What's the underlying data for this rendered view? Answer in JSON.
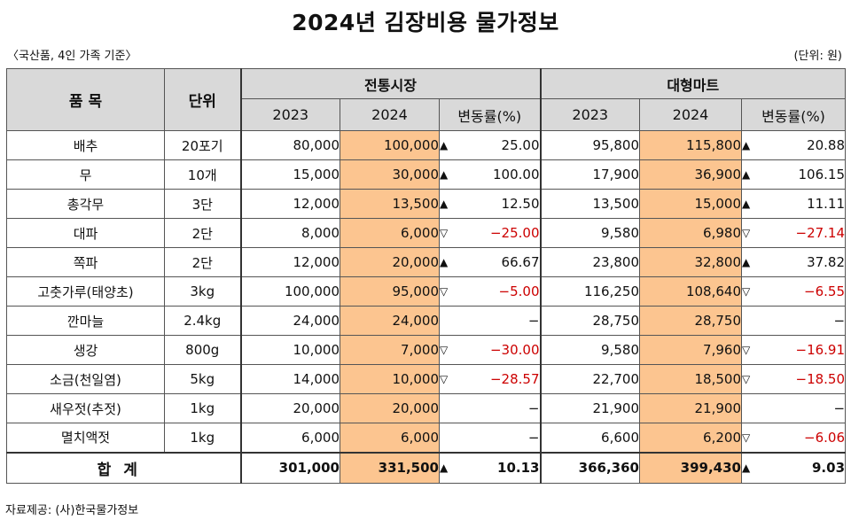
{
  "title": "2024년 김장비용 물가정보",
  "note_left": "〈국산품, 4인 가족 기준〉",
  "note_right": "(단위: 원)",
  "source": "자료제공: (사)한국물가정보",
  "headers": {
    "item": "품  목",
    "unit": "단위",
    "market": "전통시장",
    "mart": "대형마트",
    "y2023": "2023",
    "y2024": "2024",
    "change": "변동률(%)"
  },
  "rows": [
    {
      "name": "배추",
      "unit": "20포기",
      "m2023": "80,000",
      "m2024": "100,000",
      "m_arrow": "▲",
      "m_chg": "25.00",
      "m_neg": false,
      "t2023": "95,800",
      "t2024": "115,800",
      "t_arrow": "▲",
      "t_chg": "20.88",
      "t_neg": false
    },
    {
      "name": "무",
      "unit": "10개",
      "m2023": "15,000",
      "m2024": "30,000",
      "m_arrow": "▲",
      "m_chg": "100.00",
      "m_neg": false,
      "t2023": "17,900",
      "t2024": "36,900",
      "t_arrow": "▲",
      "t_chg": "106.15",
      "t_neg": false
    },
    {
      "name": "총각무",
      "unit": "3단",
      "m2023": "12,000",
      "m2024": "13,500",
      "m_arrow": "▲",
      "m_chg": "12.50",
      "m_neg": false,
      "t2023": "13,500",
      "t2024": "15,000",
      "t_arrow": "▲",
      "t_chg": "11.11",
      "t_neg": false
    },
    {
      "name": "대파",
      "unit": "2단",
      "m2023": "8,000",
      "m2024": "6,000",
      "m_arrow": "▽",
      "m_chg": "−25.00",
      "m_neg": true,
      "t2023": "9,580",
      "t2024": "6,980",
      "t_arrow": "▽",
      "t_chg": "−27.14",
      "t_neg": true
    },
    {
      "name": "쪽파",
      "unit": "2단",
      "m2023": "12,000",
      "m2024": "20,000",
      "m_arrow": "▲",
      "m_chg": "66.67",
      "m_neg": false,
      "t2023": "23,800",
      "t2024": "32,800",
      "t_arrow": "▲",
      "t_chg": "37.82",
      "t_neg": false
    },
    {
      "name": "고춧가루(태양초)",
      "unit": "3kg",
      "m2023": "100,000",
      "m2024": "95,000",
      "m_arrow": "▽",
      "m_chg": "−5.00",
      "m_neg": true,
      "t2023": "116,250",
      "t2024": "108,640",
      "t_arrow": "▽",
      "t_chg": "−6.55",
      "t_neg": true
    },
    {
      "name": "깐마늘",
      "unit": "2.4kg",
      "m2023": "24,000",
      "m2024": "24,000",
      "m_arrow": "",
      "m_chg": "−",
      "m_neg": false,
      "t2023": "28,750",
      "t2024": "28,750",
      "t_arrow": "",
      "t_chg": "−",
      "t_neg": false
    },
    {
      "name": "생강",
      "unit": "800g",
      "m2023": "10,000",
      "m2024": "7,000",
      "m_arrow": "▽",
      "m_chg": "−30.00",
      "m_neg": true,
      "t2023": "9,580",
      "t2024": "7,960",
      "t_arrow": "▽",
      "t_chg": "−16.91",
      "t_neg": true
    },
    {
      "name": "소금(천일염)",
      "unit": "5kg",
      "m2023": "14,000",
      "m2024": "10,000",
      "m_arrow": "▽",
      "m_chg": "−28.57",
      "m_neg": true,
      "t2023": "22,700",
      "t2024": "18,500",
      "t_arrow": "▽",
      "t_chg": "−18.50",
      "t_neg": true
    },
    {
      "name": "새우젓(추젓)",
      "unit": "1kg",
      "m2023": "20,000",
      "m2024": "20,000",
      "m_arrow": "",
      "m_chg": "−",
      "m_neg": false,
      "t2023": "21,900",
      "t2024": "21,900",
      "t_arrow": "",
      "t_chg": "−",
      "t_neg": false
    },
    {
      "name": "멸치액젓",
      "unit": "1kg",
      "m2023": "6,000",
      "m2024": "6,000",
      "m_arrow": "",
      "m_chg": "−",
      "m_neg": false,
      "t2023": "6,600",
      "t2024": "6,200",
      "t_arrow": "▽",
      "t_chg": "−6.06",
      "t_neg": true
    }
  ],
  "total": {
    "label": "합계",
    "m2023": "301,000",
    "m2024": "331,500",
    "m_arrow": "▲",
    "m_chg": "10.13",
    "t2023": "366,360",
    "t2024": "399,430",
    "t_arrow": "▲",
    "t_chg": "9.03"
  },
  "colors": {
    "highlight": "#fcc590",
    "header": "#d9d9d9",
    "negative": "#cc0000"
  }
}
